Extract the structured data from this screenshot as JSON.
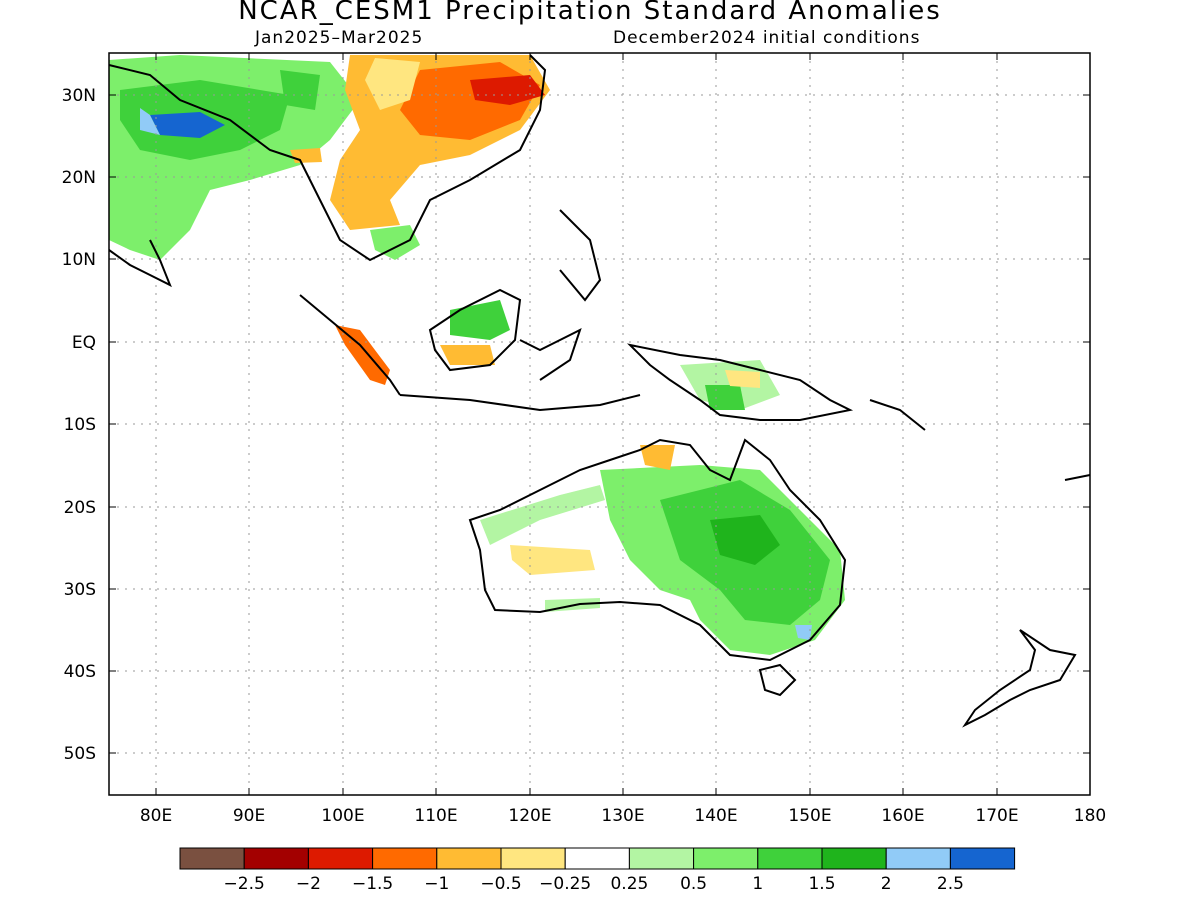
{
  "title": "NCAR_CESM1 Precipitation Standard Anomalies",
  "period": "Jan2025–Mar2025",
  "init": "December2024 initial conditions",
  "lon_labels": [
    "80E",
    "90E",
    "100E",
    "110E",
    "120E",
    "130E",
    "140E",
    "150E",
    "160E",
    "170E",
    "180"
  ],
  "lat_labels": [
    "30N",
    "20N",
    "10N",
    "EQ",
    "10S",
    "20S",
    "30S",
    "40S",
    "50S"
  ],
  "colorbar": {
    "colors": [
      "#7a5040",
      "#a30000",
      "#dd1a00",
      "#ff6a00",
      "#ffbb33",
      "#ffe680",
      "#ffffff",
      "#b3f5a3",
      "#7def6b",
      "#3fd13b",
      "#1fb41c",
      "#91cbf7",
      "#1565d0"
    ],
    "labels": [
      "−2.5",
      "−2",
      "−1.5",
      "−1",
      "−0.5",
      "−0.25",
      "0.25",
      "0.5",
      "1",
      "1.5",
      "2",
      "2.5"
    ]
  }
}
